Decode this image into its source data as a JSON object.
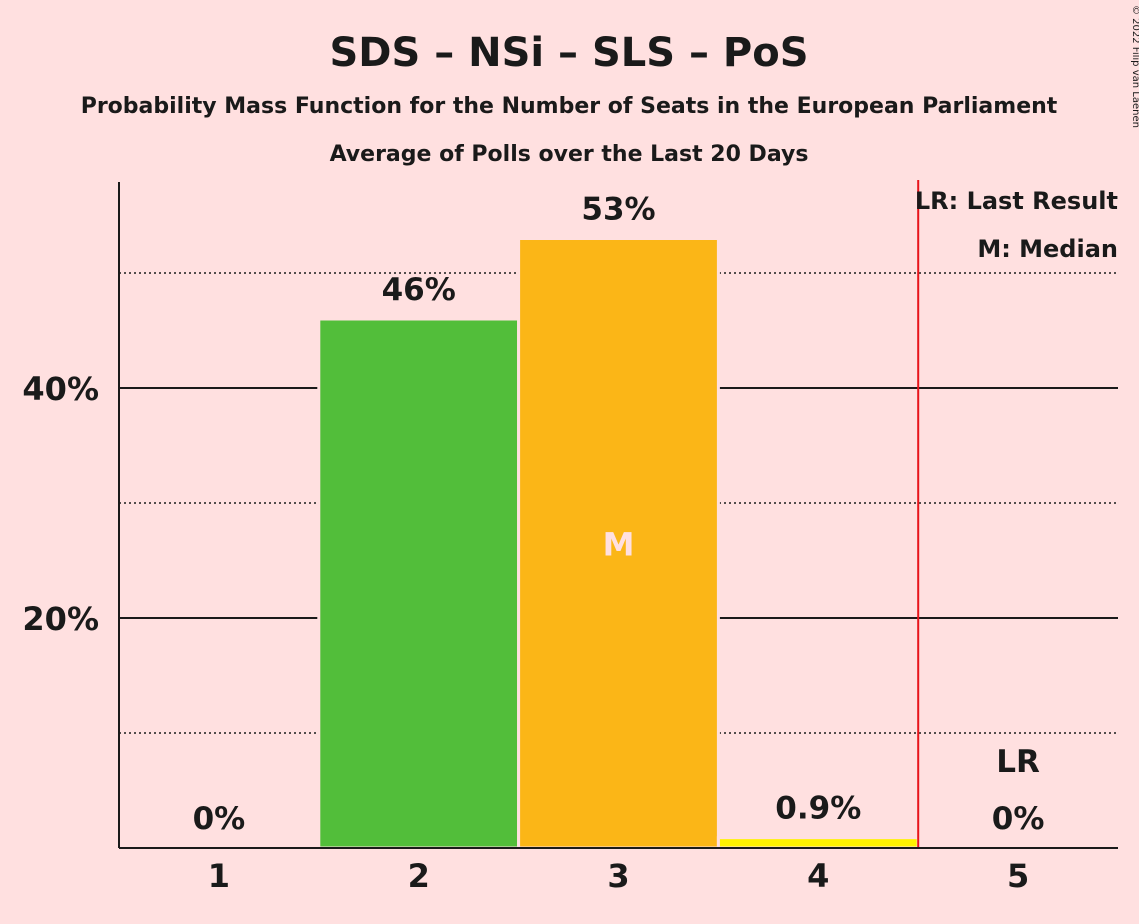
{
  "chart_data": {
    "type": "bar",
    "title": "SDS – NSi – SLS – PoS",
    "subtitle": "Probability Mass Function for the Number of Seats in the European Parliament",
    "subtitle2": "Average of Polls over the Last 20 Days",
    "categories": [
      "1",
      "2",
      "3",
      "4",
      "5"
    ],
    "values": [
      0,
      46,
      53,
      0.9,
      0
    ],
    "value_labels": [
      "0%",
      "46%",
      "53%",
      "0.9%",
      "0%"
    ],
    "bar_colors": [
      "#52BE3A",
      "#52BE3A",
      "#FBB617",
      "#FFF200",
      "#FFF200"
    ],
    "ylim": [
      0,
      58
    ],
    "solid_gridlines": [
      20,
      40
    ],
    "dotted_gridlines": [
      10,
      30,
      50
    ],
    "yticks": [
      {
        "value": 20,
        "label": "20%"
      },
      {
        "value": 40,
        "label": "40%"
      }
    ],
    "last_result_seat": 5,
    "last_result_marker": "LR",
    "median_seat": 3,
    "median_marker": "M",
    "legend": {
      "last_result": "LR: Last Result",
      "median": "M: Median",
      "position": "top-right"
    },
    "copyright": "© 2022 Filip van Laenen",
    "colors": {
      "background": "#FFE0E0",
      "axis": "#1a1a1a",
      "last_result_line": "#E8141B"
    }
  }
}
